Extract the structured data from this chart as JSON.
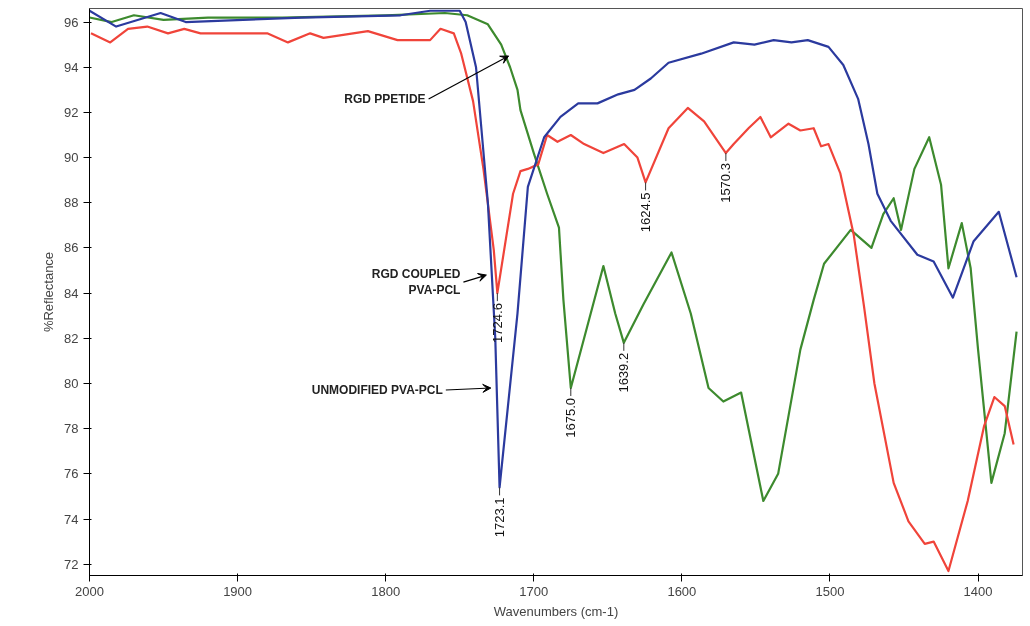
{
  "chart_data": {
    "type": "line",
    "xlabel": "Wavenumbers (cm-1)",
    "ylabel": "%Reflectance",
    "xlim": [
      2000,
      1370
    ],
    "ylim": [
      71.5,
      96.6
    ],
    "xticks": [
      2000,
      1900,
      1800,
      1700,
      1600,
      1500,
      1400
    ],
    "yticks": [
      72,
      74,
      76,
      78,
      80,
      82,
      84,
      86,
      88,
      90,
      92,
      94,
      96
    ],
    "grid": false,
    "marker": "none",
    "line_style": "solid",
    "series": [
      {
        "color": "#3d8a2e",
        "x": [
          2000,
          1985,
          1970,
          1950,
          1920,
          1870,
          1800,
          1760,
          1745,
          1731,
          1722,
          1716,
          1711,
          1709,
          1700,
          1691,
          1683,
          1680,
          1675,
          1664,
          1653,
          1645,
          1639.2,
          1626,
          1607,
          1594,
          1582,
          1572,
          1560,
          1545,
          1535,
          1520,
          1511,
          1504,
          1486,
          1472,
          1464,
          1457,
          1452,
          1443,
          1433,
          1425,
          1420,
          1411,
          1405,
          1400,
          1391,
          1382,
          1374
        ],
        "values": [
          96.2,
          96.0,
          96.3,
          96.1,
          96.2,
          96.2,
          96.3,
          96.4,
          96.3,
          95.9,
          95.0,
          94.0,
          93.0,
          92.1,
          90.2,
          88.4,
          86.9,
          83.7,
          79.8,
          82.5,
          85.2,
          83.1,
          81.8,
          83.5,
          85.8,
          83.1,
          79.8,
          79.2,
          79.6,
          74.8,
          76.0,
          81.5,
          83.7,
          85.3,
          86.8,
          86.0,
          87.5,
          88.2,
          86.8,
          89.5,
          90.9,
          88.8,
          85.1,
          87.1,
          85.1,
          81.5,
          75.6,
          77.8,
          82.3
        ]
      },
      {
        "color": "#f0443a",
        "x": [
          1999,
          1986,
          1974,
          1961,
          1947,
          1936,
          1925,
          1903,
          1880,
          1866,
          1851,
          1842,
          1812,
          1792,
          1770,
          1763,
          1754,
          1749,
          1741,
          1734,
          1727,
          1724.6,
          1714,
          1709,
          1704,
          1697,
          1691,
          1684,
          1675,
          1666,
          1653,
          1639,
          1630,
          1624.5,
          1609,
          1596,
          1585,
          1570.3,
          1565,
          1555,
          1547,
          1540,
          1528,
          1520,
          1511,
          1506,
          1501,
          1493,
          1484,
          1477,
          1470,
          1457,
          1447,
          1436,
          1430,
          1420,
          1407,
          1396,
          1389,
          1382,
          1376
        ],
        "values": [
          95.5,
          95.1,
          95.7,
          95.8,
          95.5,
          95.7,
          95.5,
          95.5,
          95.5,
          95.1,
          95.5,
          95.3,
          95.6,
          95.2,
          95.2,
          95.7,
          95.5,
          94.6,
          92.5,
          89.5,
          85.9,
          84.0,
          88.4,
          89.4,
          89.5,
          89.7,
          91.0,
          90.7,
          91.0,
          90.6,
          90.2,
          90.6,
          90.0,
          88.9,
          91.3,
          92.2,
          91.6,
          90.2,
          90.6,
          91.3,
          91.8,
          90.9,
          91.5,
          91.2,
          91.3,
          90.5,
          90.6,
          89.3,
          86.6,
          83.4,
          80.0,
          75.6,
          73.9,
          72.9,
          73.0,
          71.7,
          74.8,
          78.1,
          79.4,
          79.0,
          77.3
        ]
      },
      {
        "color": "#2b3a9e",
        "x": [
          2000,
          1982,
          1952,
          1935,
          1857,
          1790,
          1770,
          1750,
          1746,
          1739,
          1731,
          1726,
          1723.1,
          1711,
          1704,
          1693,
          1682,
          1670,
          1657,
          1643,
          1632,
          1621,
          1609,
          1587,
          1565,
          1551,
          1538,
          1526,
          1515,
          1501,
          1491,
          1481,
          1474,
          1468,
          1459,
          1441,
          1430,
          1417,
          1403,
          1386,
          1374
        ],
        "values": [
          96.5,
          95.8,
          96.4,
          96.0,
          96.2,
          96.3,
          96.5,
          96.5,
          96.0,
          94.0,
          88.0,
          82.0,
          75.4,
          83.1,
          88.7,
          90.9,
          91.8,
          92.4,
          92.4,
          92.8,
          93.0,
          93.5,
          94.2,
          94.6,
          95.1,
          95.0,
          95.2,
          95.1,
          95.2,
          94.9,
          94.1,
          92.6,
          90.6,
          88.4,
          87.2,
          85.7,
          85.4,
          83.8,
          86.3,
          87.6,
          84.7
        ]
      }
    ],
    "annotations": [
      {
        "text": "RGD PPETIDE",
        "x": 1717,
        "y": 94.5
      },
      {
        "text": "RGD COUPLED\nPVA-PCL",
        "x": 1732,
        "y": 84.8
      },
      {
        "text": "UNMODIFIED PVA-PCL",
        "x": 1729,
        "y": 79.8
      },
      {
        "text": "1724.6",
        "x": 1724.6,
        "y": 84.0
      },
      {
        "text": "1723.1",
        "x": 1723.1,
        "y": 75.4
      },
      {
        "text": "1675.0",
        "x": 1675.0,
        "y": 79.8
      },
      {
        "text": "1639.2",
        "x": 1639.2,
        "y": 81.8
      },
      {
        "text": "1624.5",
        "x": 1624.5,
        "y": 88.9
      },
      {
        "text": "1570.3",
        "x": 1570.3,
        "y": 90.2
      }
    ]
  }
}
